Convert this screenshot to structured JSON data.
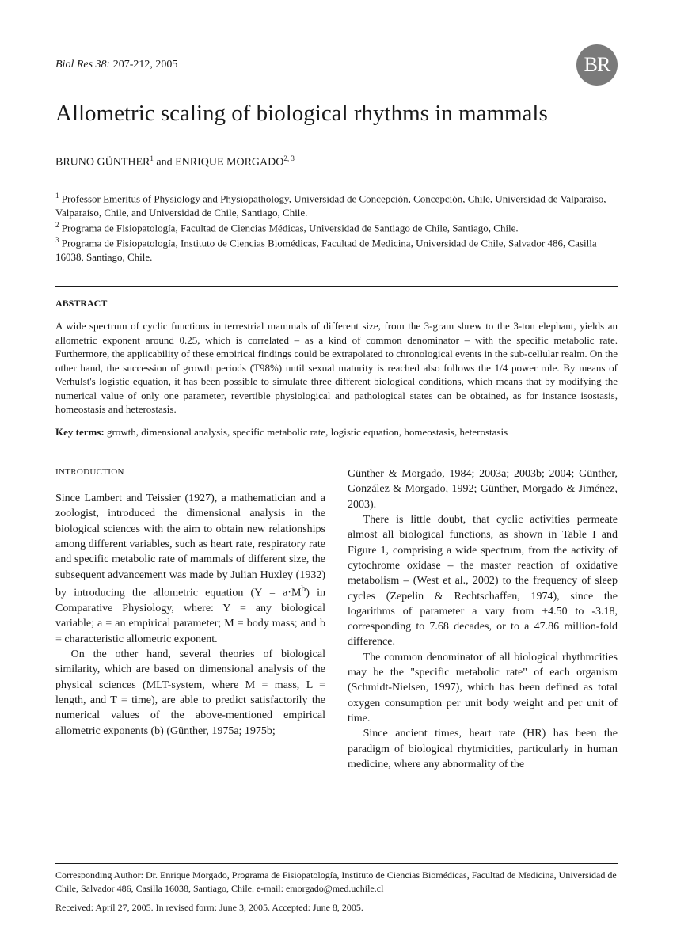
{
  "header": {
    "journal_italic": "Biol Res 38:",
    "pages": " 207-212, 2005",
    "logo_text": "BR"
  },
  "title": "Allometric scaling of biological rhythms in mammals",
  "authors_html": "BRUNO GÜNTHER<sup>1</sup> and ENRIQUE MORGADO<sup>2, 3</sup>",
  "affiliations": [
    "<sup>1</sup> Professor Emeritus of Physiology and Physiopathology, Universidad de Concepción, Concepción, Chile, Universidad de Valparaíso, Valparaíso, Chile, and Universidad de Chile, Santiago, Chile.",
    "<sup>2</sup> Programa de Fisiopatología, Facultad de Ciencias Médicas, Universidad de Santiago de Chile, Santiago, Chile.",
    "<sup>3</sup> Programa de Fisiopatología, Instituto de Ciencias Biomédicas, Facultad de Medicina, Universidad de Chile, Salvador 486, Casilla 16038, Santiago, Chile."
  ],
  "abstract": {
    "label": "ABSTRACT",
    "text": "A wide spectrum of cyclic functions in terrestrial mammals of different size, from the 3-gram shrew to the 3-ton elephant, yields an allometric exponent around 0.25, which is correlated – as a kind of common denominator – with the specific metabolic rate. Furthermore, the applicability of these empirical findings could be extrapolated to chronological events in the sub-cellular realm. On the other hand, the succession of growth periods (T98%) until sexual maturity is reached also follows the 1/4 power rule. By means of Verhulst's logistic equation, it has been possible to simulate three different biological conditions, which means that by modifying the numerical value of only one parameter, revertible physiological and pathological states can be obtained, as for instance isostasis, homeostasis and heterostasis.",
    "keyterms_label": "Key terms:",
    "keyterms": " growth, dimensional analysis, specific metabolic rate, logistic equation, homeostasis, heterostasis"
  },
  "intro_label": "INTRODUCTION",
  "left_col": [
    "Since Lambert and Teissier (1927), a mathematician and a zoologist, introduced the dimensional analysis in the biological sciences with the aim to obtain new relationships among different variables, such as heart rate, respiratory rate and specific metabolic rate of mammals of different size, the subsequent advancement was made by Julian Huxley (1932) by introducing the allometric equation (Y = a·M<sup>b</sup>) in Comparative Physiology, where: Y = any biological variable; a = an empirical parameter; M = body mass; and b = characteristic allometric exponent.",
    "On the other hand, several theories of biological similarity, which are based on dimensional analysis of the physical sciences (MLT-system, where M = mass, L = length, and T = time), are able to predict satisfactorily the numerical values of the above-mentioned empirical allometric exponents (b) (Günther, 1975a; 1975b;"
  ],
  "right_col": [
    "Günther & Morgado, 1984; 2003a; 2003b; 2004; Günther, González & Morgado, 1992; Günther, Morgado & Jiménez, 2003).",
    "There is little doubt, that cyclic activities permeate almost all biological functions, as shown in Table I and Figure 1, comprising a wide spectrum, from the activity of cytochrome oxidase – the master reaction of oxidative metabolism – (West et al., 2002) to the frequency of sleep cycles (Zepelin & Rechtschaffen, 1974), since the logarithms of parameter a vary from +4.50 to -3.18, corresponding to 7.68 decades, or to a 47.86 million-fold difference.",
    "The common denominator of all biological rhythmcities may be the \"specific metabolic rate\" of each organism (Schmidt-Nielsen, 1997), which has been defined as total oxygen consumption per unit body weight and per unit of time.",
    "Since ancient times, heart rate (HR) has been the paradigm of biological rhytmicities, particularly in human medicine, where any abnormality of the"
  ],
  "footer": {
    "corresponding": "Corresponding Author: Dr. Enrique Morgado, Programa de Fisiopatología, Instituto de Ciencias Biomédicas, Facultad de Medicina, Universidad de Chile, Salvador 486, Casilla 16038, Santiago, Chile. e-mail: emorgado@med.uchile.cl",
    "dates": "Received: April 27, 2005. In revised form: June 3, 2005. Accepted: June 8, 2005."
  }
}
